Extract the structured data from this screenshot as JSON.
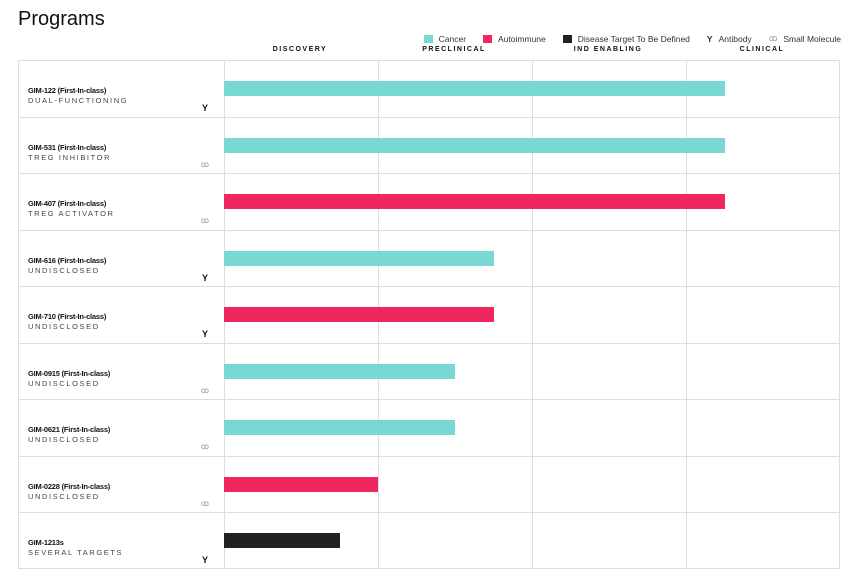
{
  "title": "Programs",
  "legend": [
    {
      "label": "Cancer",
      "color": "#79d9d2",
      "kind": "swatch"
    },
    {
      "label": "Autoimmune",
      "color": "#f0265e",
      "kind": "swatch"
    },
    {
      "label": "Disease Target To Be Defined",
      "color": "#222222",
      "kind": "swatch"
    },
    {
      "label": "Antibody",
      "icon": "antibody-icon",
      "kind": "icon"
    },
    {
      "label": "Small Molecule",
      "icon": "small-molecule-icon",
      "kind": "icon"
    }
  ],
  "chart_data": {
    "type": "bar",
    "orientation": "horizontal",
    "stages": [
      "DISCOVERY",
      "PRECLINICAL",
      "IND ENABLING",
      "CLINICAL"
    ],
    "xlim": [
      0,
      4
    ],
    "programs": [
      {
        "name": "GIM-122 (First-In-class)",
        "subtitle": "DUAL-FUNCTIONING",
        "category": "Cancer",
        "modality": "Antibody",
        "progress": 3.25
      },
      {
        "name": "GIM-531 (First-In-class)",
        "subtitle": "TREG INHIBITOR",
        "category": "Cancer",
        "modality": "Small Molecule",
        "progress": 3.25
      },
      {
        "name": "GIM-407 (First-In-class)",
        "subtitle": "TREG ACTIVATOR",
        "category": "Autoimmune",
        "modality": "Small Molecule",
        "progress": 3.25
      },
      {
        "name": "GIM-616 (First-In-class)",
        "subtitle": "UNDISCLOSED",
        "category": "Cancer",
        "modality": "Antibody",
        "progress": 1.75
      },
      {
        "name": "GIM-710 (First-In-class)",
        "subtitle": "UNDISCLOSED",
        "category": "Autoimmune",
        "modality": "Antibody",
        "progress": 1.75
      },
      {
        "name": "GIM-0915 (First-In-class)",
        "subtitle": "UNDISCLOSED",
        "category": "Cancer",
        "modality": "Small Molecule",
        "progress": 1.5
      },
      {
        "name": "GIM-0621 (First-In-class)",
        "subtitle": "UNDISCLOSED",
        "category": "Cancer",
        "modality": "Small Molecule",
        "progress": 1.5
      },
      {
        "name": "GIM-0228 (First-In-class)",
        "subtitle": "UNDISCLOSED",
        "category": "Autoimmune",
        "modality": "Small Molecule",
        "progress": 1.0
      },
      {
        "name": "GIM-1213s",
        "subtitle": "SEVERAL TARGETS",
        "category": "Disease Target To Be Defined",
        "modality": "Antibody",
        "progress": 0.75
      }
    ]
  }
}
